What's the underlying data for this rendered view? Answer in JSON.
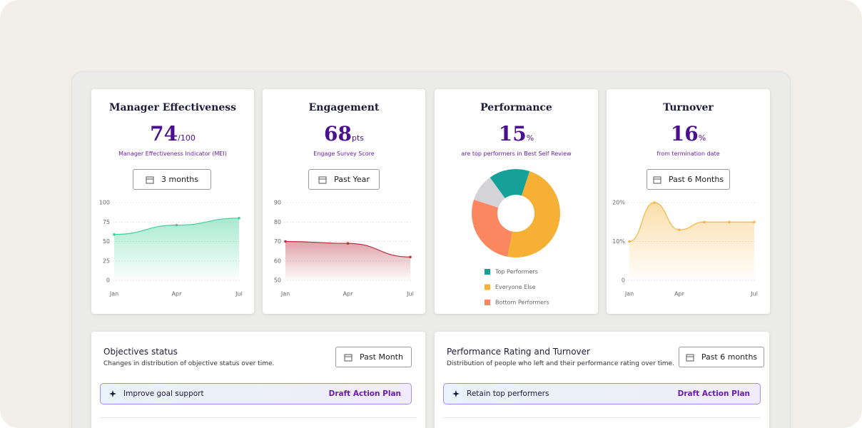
{
  "cards": [
    {
      "title": "Manager Effectiveness",
      "value": 74,
      "unit": "/100",
      "caption": "Manager Effectiveness Indicator (MEI)",
      "filter": "3 months",
      "chart": {
        "type": "line",
        "color": "#3fcf9a",
        "categories": [
          "Jan",
          "Apr",
          "Jul"
        ],
        "values": [
          59,
          71,
          80
        ],
        "ylim": [
          0,
          100
        ],
        "yticks": [
          0,
          25,
          50,
          75,
          100
        ],
        "grid": true
      }
    },
    {
      "title": "Engagement",
      "value": 68,
      "unit": "pts",
      "caption": "Engage Survey Score",
      "filter": "Past Year",
      "chart": {
        "type": "line",
        "color": "#b8323f",
        "categories": [
          "Jan",
          "Apr",
          "Jul"
        ],
        "values": [
          70,
          69,
          62
        ],
        "ylim": [
          50,
          90
        ],
        "yticks": [
          50,
          60,
          70,
          80,
          90
        ],
        "grid": true
      }
    },
    {
      "title": "Performance",
      "value": 15,
      "unit": "%",
      "caption": "are top performers in Best Self Review",
      "filter": null,
      "chart": {
        "type": "pie",
        "categories": [
          "Top Performers",
          "Everyone Else",
          "Bottom Performers",
          null
        ],
        "values": [
          15,
          48,
          27,
          10
        ],
        "colors": [
          "#16a09a",
          "#f5b035",
          "#fa8760",
          "#d3d3d8"
        ]
      }
    },
    {
      "title": "Turnover",
      "value": 16,
      "unit": "%",
      "caption": "from termination date",
      "filter": "Past 6 Months",
      "chart": {
        "type": "line",
        "color": "#f5b642",
        "categories": [
          "Jan",
          null,
          "Apr",
          null,
          null,
          "Jul"
        ],
        "values": [
          10,
          20,
          13,
          15,
          15,
          15
        ],
        "ylim": [
          0,
          20
        ],
        "yticks": [
          0,
          {
            "value": 10,
            "label": "10%"
          },
          {
            "value": 20,
            "label": "20%"
          }
        ],
        "grid": true
      }
    }
  ],
  "panels": [
    {
      "title": "Objectives status",
      "subtitle": "Changes in distribution of objective status over time.",
      "filter": "Past Month",
      "insight": "Improve goal support",
      "action": "Draft Action Plan"
    },
    {
      "title": "Performance Rating and Turnover",
      "subtitle": "Distribution of people who left and their performance rating over time.",
      "filter": "Past 6 months",
      "insight": "Retain top performers",
      "action": "Draft Action Plan"
    }
  ]
}
